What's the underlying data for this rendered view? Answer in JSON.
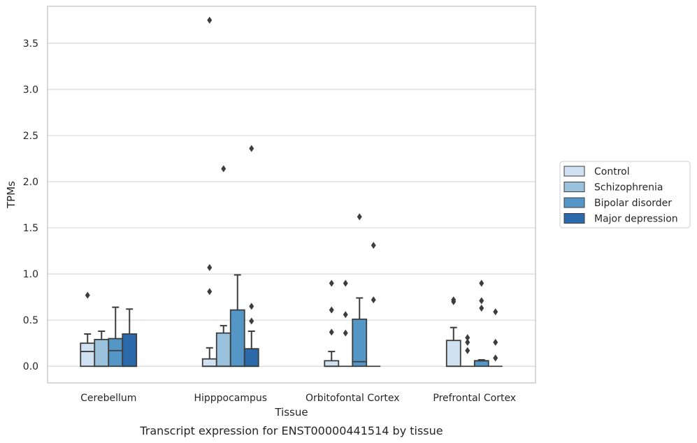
{
  "chart_data": {
    "type": "box",
    "title": "",
    "caption": "Transcript expression for ENST00000441514 by tissue",
    "xlabel": "Tissue",
    "ylabel": "TPMs",
    "ylim": [
      -0.18,
      3.9
    ],
    "yticks": [
      0.0,
      0.5,
      1.0,
      1.5,
      2.0,
      2.5,
      3.0,
      3.5
    ],
    "ytick_labels": [
      "0.0",
      "0.5",
      "1.0",
      "1.5",
      "2.0",
      "2.5",
      "3.0",
      "3.5"
    ],
    "grid": true,
    "legend_position": "right",
    "categories": [
      "Cerebellum",
      "Hipppocampus",
      "Orbitofontal Cortex",
      "Prefrontal Cortex"
    ],
    "series": [
      {
        "name": "Control",
        "color": "#d0e1f2",
        "boxes": [
          {
            "q1": 0.0,
            "median": 0.16,
            "q3": 0.25,
            "whisker_low": 0.0,
            "whisker_high": 0.35,
            "outliers": [
              0.77
            ]
          },
          {
            "q1": 0.0,
            "median": 0.0,
            "q3": 0.08,
            "whisker_low": 0.0,
            "whisker_high": 0.2,
            "outliers": [
              0.81,
              1.07,
              3.75
            ]
          },
          {
            "q1": 0.0,
            "median": 0.0,
            "q3": 0.06,
            "whisker_low": 0.0,
            "whisker_high": 0.16,
            "outliers": [
              0.37,
              0.61,
              0.9
            ]
          },
          {
            "q1": 0.0,
            "median": 0.0,
            "q3": 0.28,
            "whisker_low": 0.0,
            "whisker_high": 0.42,
            "outliers": [
              0.7,
              0.72
            ]
          }
        ]
      },
      {
        "name": "Schizophrenia",
        "color": "#9ac2dc",
        "boxes": [
          {
            "q1": 0.0,
            "median": 0.0,
            "q3": 0.29,
            "whisker_low": 0.0,
            "whisker_high": 0.38,
            "outliers": []
          },
          {
            "q1": 0.0,
            "median": 0.0,
            "q3": 0.36,
            "whisker_low": 0.0,
            "whisker_high": 0.44,
            "outliers": [
              2.14
            ]
          },
          {
            "q1": 0.0,
            "median": 0.0,
            "q3": 0.0,
            "whisker_low": 0.0,
            "whisker_high": 0.0,
            "outliers": [
              0.36,
              0.56,
              0.9
            ]
          },
          {
            "q1": 0.0,
            "median": 0.0,
            "q3": 0.0,
            "whisker_low": 0.0,
            "whisker_high": 0.0,
            "outliers": [
              0.17,
              0.26,
              0.31
            ]
          }
        ]
      },
      {
        "name": "Bipolar disorder",
        "color": "#5497c7",
        "boxes": [
          {
            "q1": 0.0,
            "median": 0.17,
            "q3": 0.3,
            "whisker_low": 0.0,
            "whisker_high": 0.64,
            "outliers": []
          },
          {
            "q1": 0.0,
            "median": 0.0,
            "q3": 0.61,
            "whisker_low": 0.0,
            "whisker_high": 0.99,
            "outliers": []
          },
          {
            "q1": 0.0,
            "median": 0.05,
            "q3": 0.51,
            "whisker_low": 0.0,
            "whisker_high": 0.74,
            "outliers": [
              1.62
            ]
          },
          {
            "q1": 0.0,
            "median": 0.06,
            "q3": 0.06,
            "whisker_low": 0.0,
            "whisker_high": 0.07,
            "outliers": [
              0.63,
              0.71,
              0.9
            ]
          }
        ]
      },
      {
        "name": "Major depression",
        "color": "#2c69aa",
        "boxes": [
          {
            "q1": 0.0,
            "median": 0.0,
            "q3": 0.35,
            "whisker_low": 0.0,
            "whisker_high": 0.62,
            "outliers": []
          },
          {
            "q1": 0.0,
            "median": 0.0,
            "q3": 0.19,
            "whisker_low": 0.0,
            "whisker_high": 0.38,
            "outliers": [
              0.49,
              0.65,
              2.36
            ]
          },
          {
            "q1": 0.0,
            "median": 0.0,
            "q3": 0.0,
            "whisker_low": 0.0,
            "whisker_high": 0.0,
            "outliers": [
              0.72,
              1.31
            ]
          },
          {
            "q1": 0.0,
            "median": 0.0,
            "q3": 0.0,
            "whisker_low": 0.0,
            "whisker_high": 0.0,
            "outliers": [
              0.09,
              0.26,
              0.59
            ]
          }
        ]
      }
    ]
  },
  "colors": {
    "grid": "#d9d9d9",
    "axes_frame": "#cccccc",
    "box_edge": "#3d3d3d",
    "text": "#262626"
  }
}
